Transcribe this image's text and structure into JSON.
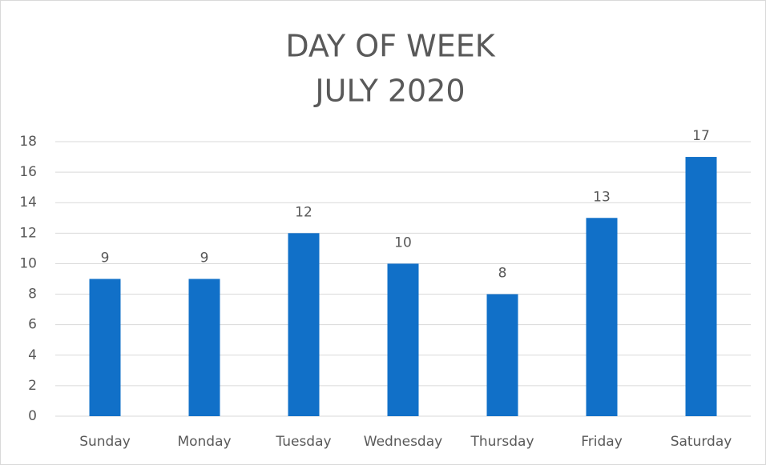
{
  "chart_data": {
    "type": "bar",
    "title": "DAY OF WEEK",
    "subtitle": "JULY 2020",
    "categories": [
      "Sunday",
      "Monday",
      "Tuesday",
      "Wednesday",
      "Thursday",
      "Friday",
      "Saturday"
    ],
    "values": [
      9,
      9,
      12,
      10,
      8,
      13,
      17
    ],
    "color": "#1170c8",
    "ylim": [
      0,
      18
    ],
    "yticks": [
      0,
      2,
      4,
      6,
      8,
      10,
      12,
      14,
      16,
      18
    ],
    "grid": true,
    "data_labels": true
  }
}
